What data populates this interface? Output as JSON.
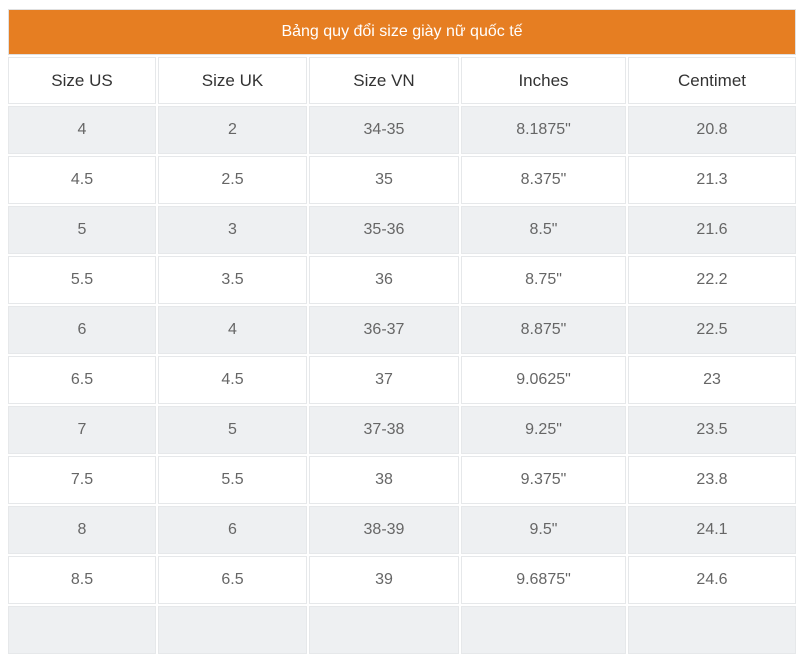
{
  "table": {
    "title": "Bảng quy đổi size giày nữ quốc tế",
    "title_color": "#e67e22",
    "headers": [
      "Size US",
      "Size UK",
      "Size VN",
      "Inches",
      "Centimet"
    ],
    "rows": [
      [
        "4",
        "2",
        "34-35",
        "8.1875\"",
        "20.8"
      ],
      [
        "4.5",
        "2.5",
        "35",
        "8.375\"",
        "21.3"
      ],
      [
        "5",
        "3",
        "35-36",
        "8.5\"",
        "21.6"
      ],
      [
        "5.5",
        "3.5",
        "36",
        "8.75\"",
        "22.2"
      ],
      [
        "6",
        "4",
        "36-37",
        "8.875\"",
        "22.5"
      ],
      [
        "6.5",
        "4.5",
        "37",
        "9.0625\"",
        "23"
      ],
      [
        "7",
        "5",
        "37-38",
        "9.25\"",
        "23.5"
      ],
      [
        "7.5",
        "5.5",
        "38",
        "9.375\"",
        "23.8"
      ],
      [
        "8",
        "6",
        "38-39",
        "9.5\"",
        "24.1"
      ],
      [
        "8.5",
        "6.5",
        "39",
        "9.6875\"",
        "24.6"
      ],
      [
        "",
        "",
        "",
        "",
        ""
      ]
    ]
  }
}
